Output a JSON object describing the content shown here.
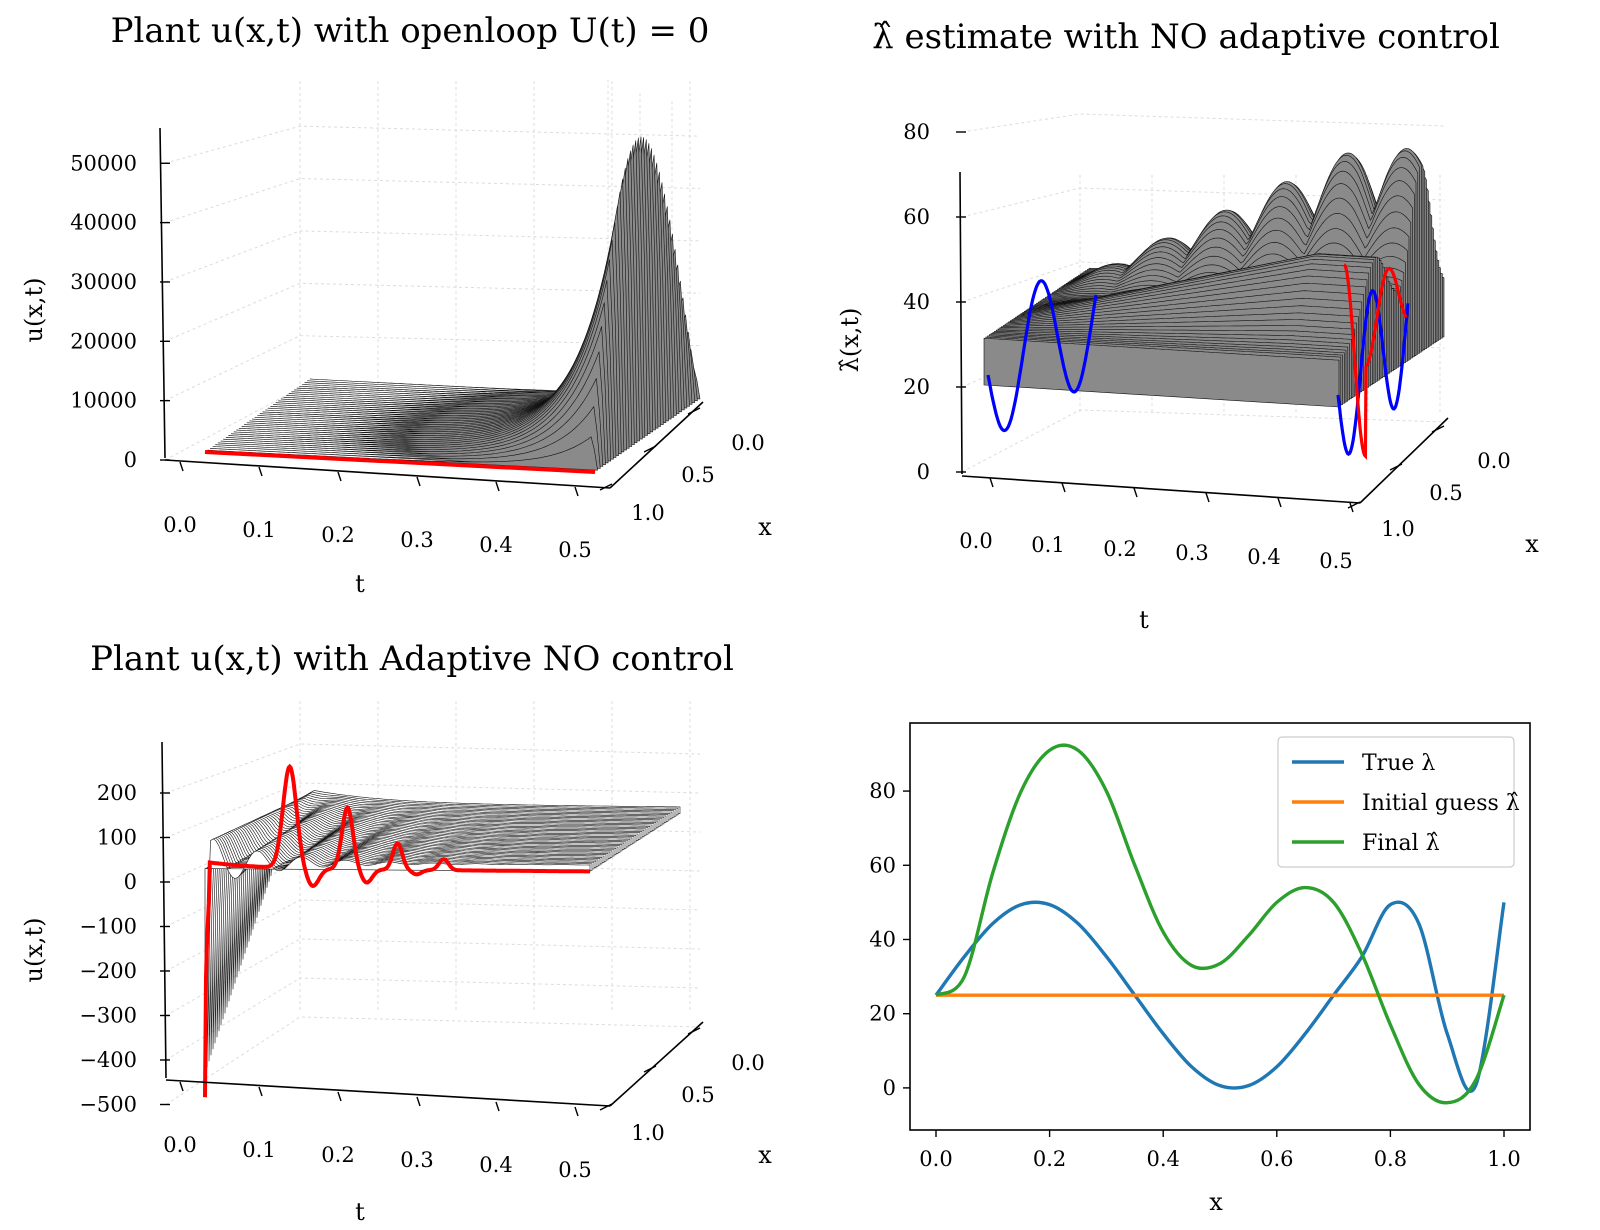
{
  "chart_data": [
    {
      "type": "surface3d",
      "title": "Plant u(x,t) with openloop U(t) = 0",
      "zlabel": "u(x,t)",
      "xlabel": "t",
      "ylabel": "x",
      "t_ticks": [
        "0.0",
        "0.1",
        "0.2",
        "0.3",
        "0.4",
        "0.5"
      ],
      "x_ticks": [
        "0.0",
        "0.5",
        "1.0"
      ],
      "z_ticks": [
        "0",
        "10000",
        "20000",
        "30000",
        "40000",
        "50000"
      ],
      "zlim": [
        0,
        55000
      ],
      "peak": 55000,
      "highlight_color": "#ff0000",
      "surface_color": "#8a8a8a"
    },
    {
      "type": "surface3d",
      "title": "λ̂ estimate with NO adaptive control",
      "zlabel": "λ̂(x,t)",
      "xlabel": "t",
      "ylabel": "x",
      "t_ticks": [
        "0.0",
        "0.1",
        "0.2",
        "0.3",
        "0.4",
        "0.5"
      ],
      "x_ticks": [
        "0.0",
        "0.5",
        "1.0"
      ],
      "z_ticks": [
        "0",
        "20",
        "40",
        "60",
        "80"
      ],
      "zlim": [
        0,
        95
      ],
      "initial_profile_color": "#0000ff",
      "final_profile_color": "#ff0000"
    },
    {
      "type": "surface3d",
      "title": "Plant u(x,t) with Adaptive NO control",
      "zlabel": "u(x,t)",
      "xlabel": "t",
      "ylabel": "x",
      "t_ticks": [
        "0.0",
        "0.1",
        "0.2",
        "0.3",
        "0.4",
        "0.5"
      ],
      "x_ticks": [
        "0.0",
        "0.5",
        "1.0"
      ],
      "z_ticks": [
        "200",
        "100",
        "0",
        "−100",
        "−200",
        "−300",
        "−400",
        "−500"
      ],
      "zlim": [
        -500,
        250
      ],
      "highlight_color": "#ff0000"
    },
    {
      "type": "line",
      "xlabel": "x",
      "ylabel": "",
      "xlim": [
        0,
        1
      ],
      "ylim": [
        -10,
        97
      ],
      "x_ticks": [
        "0.0",
        "0.2",
        "0.4",
        "0.6",
        "0.8",
        "1.0"
      ],
      "y_ticks": [
        "0",
        "20",
        "40",
        "60",
        "80"
      ],
      "legend_position": "upper-right",
      "series": [
        {
          "name": "True λ",
          "color": "#1f77b4",
          "x": [
            0.0,
            0.05,
            0.1,
            0.15,
            0.2,
            0.25,
            0.3,
            0.35,
            0.4,
            0.45,
            0.5,
            0.55,
            0.6,
            0.65,
            0.7,
            0.75,
            0.8,
            0.85,
            0.9,
            0.95,
            1.0
          ],
          "values": [
            25.0,
            35.4,
            44.3,
            49.4,
            49.4,
            44.3,
            35.4,
            25.0,
            14.6,
            5.7,
            0.6,
            0.6,
            5.7,
            14.6,
            25.0,
            35.4,
            49.4,
            44.3,
            14.6,
            0.6,
            50.0
          ]
        },
        {
          "name": "Initial guess λ̂",
          "color": "#ff7f0e",
          "x": [
            0.0,
            1.0
          ],
          "values": [
            25,
            25
          ]
        },
        {
          "name": "Final λ̂",
          "color": "#2ca02c",
          "x": [
            0.0,
            0.05,
            0.1,
            0.15,
            0.2,
            0.25,
            0.3,
            0.35,
            0.4,
            0.45,
            0.5,
            0.55,
            0.6,
            0.65,
            0.7,
            0.75,
            0.8,
            0.85,
            0.9,
            0.95,
            1.0
          ],
          "values": [
            25.0,
            30.0,
            58.0,
            80.0,
            91.0,
            91.0,
            80.0,
            60.0,
            42.0,
            33.0,
            33.5,
            41.0,
            50.0,
            54.0,
            50.0,
            36.0,
            17.0,
            1.0,
            -4.0,
            2.0,
            25.0
          ]
        }
      ]
    }
  ]
}
